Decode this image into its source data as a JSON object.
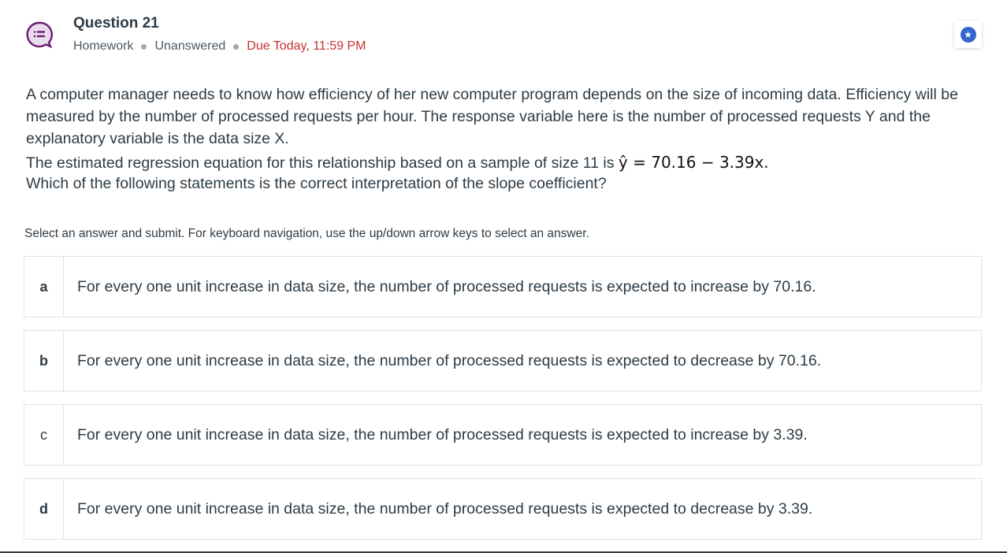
{
  "header": {
    "title": "Question 21",
    "type": "Homework",
    "status": "Unanswered",
    "due": "Due Today, 11:59 PM",
    "icon": "question-bubble-icon",
    "star_icon": "star-icon"
  },
  "stem": {
    "p1": "A computer manager needs to know how efficiency of her new computer program depends on the size of incoming data. Efficiency will be measured by the number of processed requests per hour. The response variable here is the number of processed requests Y and the explanatory variable is the data size X.",
    "p2_pre": "The estimated regression equation for this relationship based on a sample of size 11 is ",
    "equation": "ŷ  = 70.16 − 3.39x.",
    "p3": "Which of the following statements is the correct interpretation of the slope coefficient?"
  },
  "instructions": "Select an answer and submit. For keyboard navigation, use the up/down arrow keys to select an answer.",
  "options": [
    {
      "letter": "a",
      "text": "For every one unit increase in data size, the number of processed requests is expected to increase by 70.16."
    },
    {
      "letter": "b",
      "text": "For every one unit increase in data size, the number of processed requests is expected to decrease by 70.16."
    },
    {
      "letter": "c",
      "text": "For every one unit increase in data size, the number of processed requests is expected to increase by 3.39."
    },
    {
      "letter": "d",
      "text": "For every one unit increase in data size, the number of processed requests is expected to decrease by 3.39."
    }
  ]
}
